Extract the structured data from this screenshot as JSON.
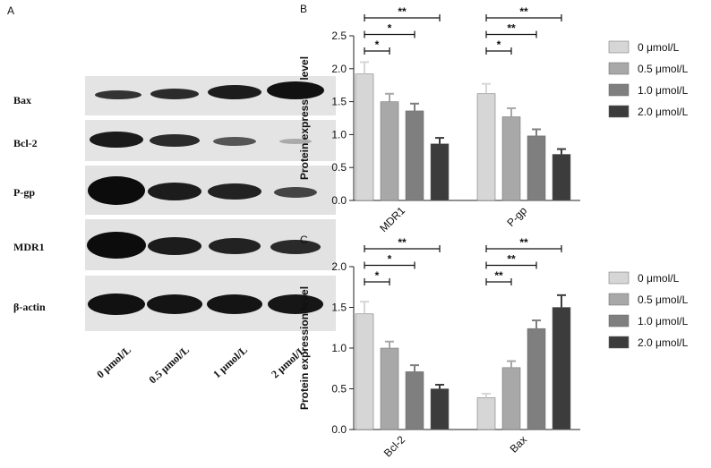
{
  "blot": {
    "panel_label": "A",
    "rows": [
      "Bax",
      "Bcl-2",
      "P-gp",
      "MDR1",
      "β-actin"
    ],
    "lanes": [
      "0 μmol/L",
      "0.5 μmol/L",
      "1 μmol/L",
      "2 μmol/L"
    ]
  },
  "chart_data": [
    {
      "type": "bar",
      "panel_label": "B",
      "ylabel": "Protein expression level",
      "categories": [
        "MDR1",
        "P-gp"
      ],
      "series": [
        {
          "name": "0 μmol/L",
          "color": "#d6d6d6",
          "values": [
            1.92,
            1.62
          ],
          "errors": [
            0.18,
            0.15
          ]
        },
        {
          "name": "0.5 μmol/L",
          "color": "#a8a8a8",
          "values": [
            1.5,
            1.27
          ],
          "errors": [
            0.12,
            0.13
          ]
        },
        {
          "name": "1.0 μmol/L",
          "color": "#7f7f7f",
          "values": [
            1.36,
            0.98
          ],
          "errors": [
            0.11,
            0.1
          ]
        },
        {
          "name": "2.0 μmol/L",
          "color": "#3c3c3c",
          "values": [
            0.86,
            0.7
          ],
          "errors": [
            0.09,
            0.08
          ]
        }
      ],
      "annotations": [
        [
          "*",
          "*",
          "**"
        ],
        [
          "*",
          "**",
          "**"
        ]
      ],
      "ylim": [
        0,
        2.5
      ],
      "yticks": [
        {
          "value": 0,
          "label": "0.0"
        },
        0.5,
        {
          "value": 1,
          "label": "1.0"
        },
        1.5,
        {
          "value": 2,
          "label": "2.0"
        },
        2.5
      ]
    },
    {
      "type": "bar",
      "panel_label": "C",
      "ylabel": "Protein expression level",
      "categories": [
        "Bcl-2",
        "Bax"
      ],
      "series": [
        {
          "name": "0 μmol/L",
          "color": "#d6d6d6",
          "values": [
            1.42,
            0.39
          ],
          "errors": [
            0.15,
            0.05
          ]
        },
        {
          "name": "0.5 μmol/L",
          "color": "#a8a8a8",
          "values": [
            1.0,
            0.76
          ],
          "errors": [
            0.08,
            0.08
          ]
        },
        {
          "name": "1.0 μmol/L",
          "color": "#7f7f7f",
          "values": [
            0.71,
            1.24
          ],
          "errors": [
            0.08,
            0.1
          ]
        },
        {
          "name": "2.0 μmol/L",
          "color": "#3c3c3c",
          "values": [
            0.5,
            1.5
          ],
          "errors": [
            0.05,
            0.15
          ]
        }
      ],
      "annotations": [
        [
          "*",
          "*",
          "**"
        ],
        [
          "**",
          "**",
          "**"
        ]
      ],
      "ylim": [
        0,
        2.0
      ],
      "yticks": [
        {
          "value": 0,
          "label": "0.0"
        },
        0.5,
        {
          "value": 1,
          "label": "1.0"
        },
        1.5,
        {
          "value": 2,
          "label": "2.0"
        }
      ]
    }
  ]
}
